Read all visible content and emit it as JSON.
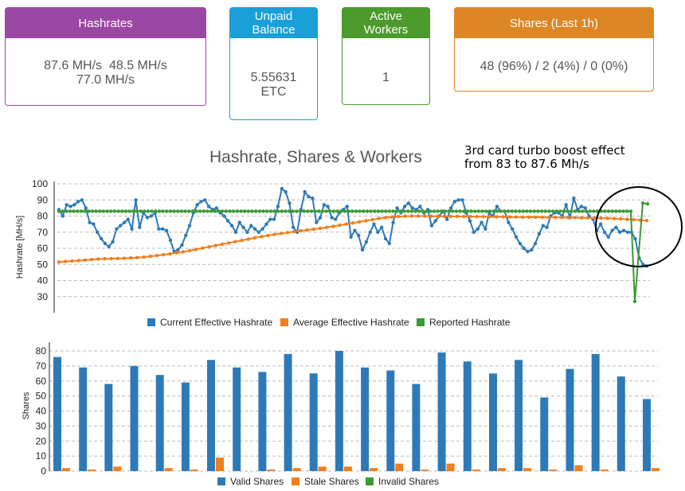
{
  "cards": {
    "hashrates": {
      "title": "Hashrates",
      "line1": "87.6 MH/s  48.5 MH/s",
      "line2": "77.0 MH/s",
      "color": "#9a48a3"
    },
    "unpaid": {
      "title_line1": "Unpaid",
      "title_line2": "Balance",
      "value": "5.55631",
      "unit": "ETC",
      "color": "#1a9fd6"
    },
    "workers": {
      "title_line1": "Active",
      "title_line2": "Workers",
      "value": "1",
      "color": "#4b9a2b"
    },
    "shares": {
      "title": "Shares (Last 1h)",
      "value": "48 (96%) / 2 (4%) / 0 (0%)",
      "color": "#dd8625"
    }
  },
  "annotation": {
    "line1": "3rd card turbo boost effect",
    "line2": "from 83 to 87.6 Mh/s"
  },
  "chart_data": [
    {
      "type": "line",
      "title": "Hashrate, Shares & Workers",
      "ylabel": "Hashrate [MH/s]",
      "ylim": [
        20,
        100
      ],
      "yticks": [
        30,
        40,
        50,
        60,
        70,
        80,
        90,
        100
      ],
      "grid": true,
      "legend": "bottom",
      "series": [
        {
          "name": "Current Effective Hashrate",
          "color": "#2e7ab8",
          "values": [
            84,
            80,
            87,
            86,
            87,
            89,
            90,
            85,
            76,
            75,
            70,
            66,
            63,
            61,
            64,
            72,
            74,
            76,
            78,
            72,
            90,
            73,
            82,
            79,
            80,
            82,
            72,
            72,
            71,
            65,
            58,
            59,
            62,
            68,
            74,
            82,
            87,
            89,
            90,
            86,
            84,
            85,
            82,
            80,
            77,
            74,
            70,
            76,
            73,
            70,
            74,
            72,
            70,
            72,
            75,
            78,
            78,
            86,
            97,
            95,
            88,
            73,
            70,
            84,
            95,
            92,
            91,
            76,
            79,
            87,
            86,
            79,
            78,
            82,
            84,
            86,
            67,
            71,
            68,
            59,
            64,
            70,
            75,
            70,
            73,
            66,
            63,
            76,
            85,
            82,
            86,
            88,
            85,
            84,
            86,
            82,
            84,
            74,
            77,
            80,
            83,
            78,
            85,
            89,
            90,
            90,
            82,
            77,
            70,
            72,
            76,
            72,
            82,
            80,
            86,
            83,
            83,
            76,
            72,
            67,
            63,
            60,
            58,
            59,
            63,
            69,
            74,
            73,
            80,
            82,
            82,
            80,
            87,
            79,
            91,
            84,
            86,
            85,
            80,
            78,
            71,
            75,
            70,
            67,
            71,
            73,
            70,
            71,
            70,
            70,
            66,
            54,
            50,
            49
          ]
        },
        {
          "name": "Average Effective Hashrate",
          "color": "#f07f1c",
          "values": [
            51.5,
            51.8,
            52.1,
            52.4,
            52.7,
            53.0,
            53.3,
            53.5,
            53.6,
            53.7,
            53.8,
            54.0,
            54.2,
            54.5,
            55.0,
            55.5,
            56.0,
            56.5,
            57.2,
            57.8,
            58.5,
            59.3,
            60.1,
            60.9,
            61.7,
            62.5,
            63.3,
            64.1,
            64.9,
            65.7,
            66.5,
            67.2,
            67.9,
            68.6,
            69.2,
            69.8,
            70.3,
            70.8,
            71.3,
            71.8,
            72.4,
            73.0,
            73.6,
            74.3,
            75.0,
            75.7,
            76.4,
            77.1,
            77.8,
            78.5,
            79.0,
            79.4,
            79.7,
            79.9,
            80.0,
            80.0,
            80.0,
            79.9,
            79.9,
            79.8,
            79.8,
            79.8,
            79.7,
            79.7,
            79.6,
            79.6,
            79.6,
            79.5,
            79.5,
            79.4,
            79.4,
            79.3,
            79.3,
            79.3,
            79.2,
            79.2,
            79.1,
            79.1,
            79.0,
            79.0,
            78.9,
            78.9,
            78.8,
            78.7,
            78.6,
            78.4,
            78.2,
            78.0,
            77.8,
            77.5,
            77.2
          ]
        },
        {
          "name": "Reported Hashrate",
          "color": "#3a9a34",
          "values": [
            83,
            83,
            83,
            83,
            83,
            83,
            83,
            83,
            83,
            83,
            83,
            83,
            83,
            83,
            83,
            83,
            83,
            83,
            83,
            83,
            83,
            83,
            83,
            83,
            83,
            83,
            83,
            83,
            83,
            83,
            83,
            83,
            83,
            83,
            83,
            83,
            83,
            83,
            83,
            83,
            83,
            83,
            83,
            83,
            83,
            83,
            83,
            83,
            83,
            83,
            83,
            83,
            83,
            83,
            83,
            83,
            83,
            83,
            83,
            83,
            83,
            83,
            83,
            83,
            83,
            83,
            83,
            83,
            83,
            83,
            83,
            83,
            83,
            83,
            83,
            83,
            83,
            83,
            83,
            83,
            83,
            83,
            83,
            83,
            83,
            83,
            83,
            83,
            83,
            83,
            83,
            83,
            83,
            83,
            83,
            83,
            83,
            83,
            83,
            83,
            83,
            83,
            83,
            83,
            83,
            83,
            83,
            83,
            83,
            83,
            83,
            83,
            83,
            83,
            83,
            83,
            83,
            83,
            83,
            83,
            83,
            83,
            83,
            83,
            83,
            83,
            83,
            83,
            83,
            83,
            83,
            83,
            83,
            83,
            83,
            83,
            83,
            83,
            83,
            83,
            83,
            83,
            83,
            83,
            83,
            83,
            83,
            83,
            83,
            83,
            83,
            83,
            83,
            83,
            83,
            27,
            88,
            87.6
          ]
        }
      ]
    },
    {
      "type": "bar",
      "ylabel": "Shares",
      "ylim": [
        0,
        85
      ],
      "yticks": [
        0,
        10,
        20,
        30,
        40,
        50,
        60,
        70,
        80
      ],
      "grid": true,
      "legend": "bottom",
      "categories_count": 24,
      "series": [
        {
          "name": "Valid Shares",
          "color": "#2e7ab8",
          "values": [
            76,
            69,
            58,
            70,
            64,
            59,
            74,
            69,
            66,
            78,
            65,
            80,
            69,
            67,
            58,
            79,
            73,
            65,
            74,
            49,
            68,
            78,
            63,
            48
          ]
        },
        {
          "name": "Stale Shares",
          "color": "#f07f1c",
          "values": [
            2,
            1,
            3,
            0,
            2,
            1,
            9,
            0,
            1,
            2,
            3,
            3,
            2,
            5,
            1,
            5,
            1,
            2,
            2,
            1,
            4,
            1,
            0,
            2
          ]
        },
        {
          "name": "Invalid Shares",
          "color": "#3a9a34",
          "values": [
            0,
            0,
            0,
            0,
            0,
            0,
            0,
            0,
            0,
            0,
            0,
            0,
            0,
            0,
            0,
            0,
            0,
            0,
            0,
            0,
            0,
            0,
            0,
            0
          ]
        }
      ]
    }
  ]
}
